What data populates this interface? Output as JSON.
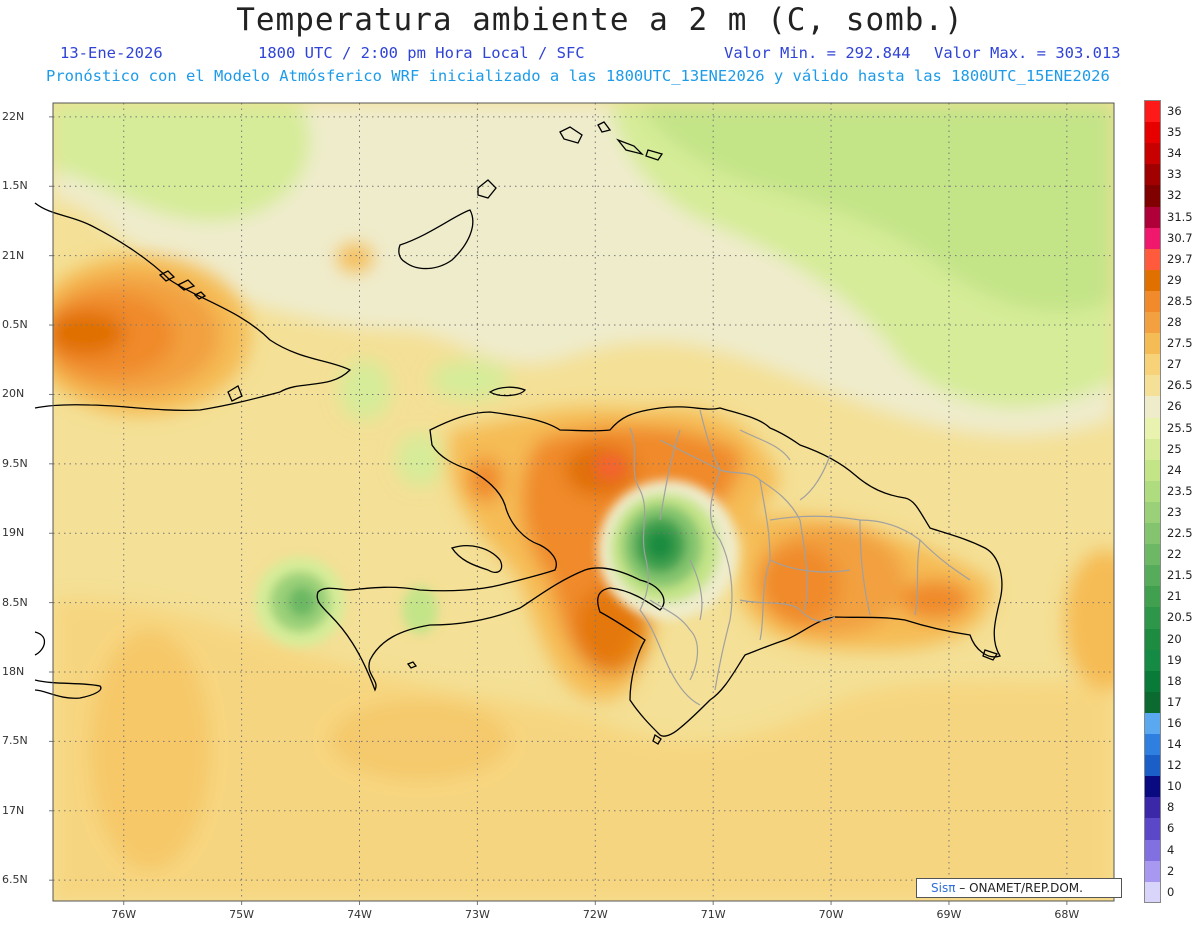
{
  "header": {
    "title": "Temperatura ambiente a 2 m (C, somb.)",
    "date": "13-Ene-2026",
    "time": "1800 UTC / 2:00 pm Hora Local / SFC",
    "min_value": "Valor Min. = 292.844",
    "max_value": "Valor Max. = 303.013",
    "forecast_note": "Pronóstico con el Modelo Atmósferico WRF inicializado a las 1800UTC_13ENE2026 y válido hasta las  1800UTC_15ENE2026"
  },
  "map_extent": {
    "lon": [
      -76.6,
      -67.6
    ],
    "lat": [
      16.35,
      22.1
    ]
  },
  "lat_ticks": [
    {
      "value": 22,
      "label": "22N"
    },
    {
      "value": 21.5,
      "label": "1.5N"
    },
    {
      "value": 21,
      "label": "21N"
    },
    {
      "value": 20.5,
      "label": "0.5N"
    },
    {
      "value": 20,
      "label": "20N"
    },
    {
      "value": 19.5,
      "label": "9.5N"
    },
    {
      "value": 19,
      "label": "19N"
    },
    {
      "value": 18.5,
      "label": "8.5N"
    },
    {
      "value": 18,
      "label": "18N"
    },
    {
      "value": 17.5,
      "label": "7.5N"
    },
    {
      "value": 17,
      "label": "17N"
    },
    {
      "value": 16.5,
      "label": "6.5N"
    }
  ],
  "lon_ticks": [
    {
      "value": -76,
      "label": "76W"
    },
    {
      "value": -75,
      "label": "75W"
    },
    {
      "value": -74,
      "label": "74W"
    },
    {
      "value": -73,
      "label": "73W"
    },
    {
      "value": -72,
      "label": "72W"
    },
    {
      "value": -71,
      "label": "71W"
    },
    {
      "value": -70,
      "label": "70W"
    },
    {
      "value": -69,
      "label": "69W"
    },
    {
      "value": -68,
      "label": "68W"
    }
  ],
  "colorbar": [
    {
      "label": "36",
      "color": "#ff1a1a"
    },
    {
      "label": "35",
      "color": "#e60000"
    },
    {
      "label": "34",
      "color": "#c80000"
    },
    {
      "label": "33",
      "color": "#a00000"
    },
    {
      "label": "32",
      "color": "#800000"
    },
    {
      "label": "31.5",
      "color": "#b0003a"
    },
    {
      "label": "30.7",
      "color": "#f0186c"
    },
    {
      "label": "29.7",
      "color": "#ff5a3c"
    },
    {
      "label": "29",
      "color": "#e07000"
    },
    {
      "label": "28.5",
      "color": "#f08a2a"
    },
    {
      "label": "28",
      "color": "#f2a040"
    },
    {
      "label": "27.5",
      "color": "#f5bb55"
    },
    {
      "label": "27",
      "color": "#f7d278"
    },
    {
      "label": "26.5",
      "color": "#f4e096"
    },
    {
      "label": "26",
      "color": "#efeccc"
    },
    {
      "label": "25.5",
      "color": "#eaf2b0"
    },
    {
      "label": "25",
      "color": "#d6ec98"
    },
    {
      "label": "24",
      "color": "#c4e488"
    },
    {
      "label": "23.5",
      "color": "#b0dc80"
    },
    {
      "label": "23",
      "color": "#9ad078"
    },
    {
      "label": "22.5",
      "color": "#84c46e"
    },
    {
      "label": "22",
      "color": "#6cb864"
    },
    {
      "label": "21.5",
      "color": "#56ac5a"
    },
    {
      "label": "21",
      "color": "#40a050"
    },
    {
      "label": "20.5",
      "color": "#2e9648"
    },
    {
      "label": "20",
      "color": "#1e8c40"
    },
    {
      "label": "19",
      "color": "#158a44"
    },
    {
      "label": "18",
      "color": "#0a7a38"
    },
    {
      "label": "17",
      "color": "#0a6a30"
    },
    {
      "label": "16",
      "color": "#5aa8f0"
    },
    {
      "label": "14",
      "color": "#2e7fe0"
    },
    {
      "label": "12",
      "color": "#1a5fc8"
    },
    {
      "label": "10",
      "color": "#0a0a80"
    },
    {
      "label": "8",
      "color": "#3a28a8"
    },
    {
      "label": "6",
      "color": "#5a48c8"
    },
    {
      "label": "4",
      "color": "#8070e0"
    },
    {
      "label": "2",
      "color": "#a898f0"
    },
    {
      "label": "0",
      "color": "#d8d4fa"
    }
  ],
  "colors": {
    "land_outline": "#000000",
    "province_outline": "#a0a0a0",
    "grid": "#777777",
    "background_field": "#f7e2a0"
  },
  "credit": {
    "brand": "Sisπ",
    "agency": " – ONAMET/REP.DOM."
  }
}
